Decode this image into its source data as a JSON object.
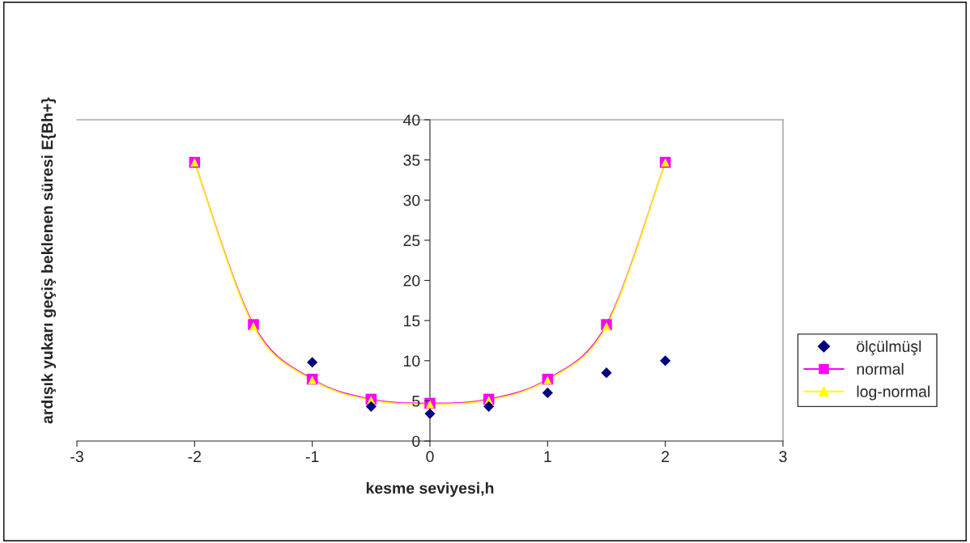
{
  "chart_data": {
    "type": "scatter",
    "xlabel": "kesme seviyesi,h",
    "ylabel": "ardışık yukarı geçiş beklenen süresi E{Bh+}",
    "xlim": [
      -3,
      3
    ],
    "xticks": [
      -3,
      -2,
      -1,
      0,
      1,
      2,
      3
    ],
    "ylim": [
      0,
      40
    ],
    "yticks": [
      0,
      5,
      10,
      15,
      20,
      25,
      30,
      35,
      40
    ],
    "grid": false,
    "legend": "right",
    "series": [
      {
        "name": "ölçülmüşl",
        "marker": "diamond",
        "color": "#000080",
        "x": [
          -1,
          -0.5,
          0,
          0.5,
          1,
          1.5,
          2
        ],
        "values": [
          9.8,
          4.3,
          3.4,
          4.3,
          6.0,
          8.5,
          10.0
        ]
      },
      {
        "name": "normal",
        "type": "line",
        "marker": "square",
        "color": "#ff00ff",
        "x": [
          -2,
          -1.5,
          -1,
          -0.5,
          0,
          0.5,
          1,
          1.5,
          2
        ],
        "values": [
          34.7,
          14.5,
          7.7,
          5.2,
          4.7,
          5.2,
          7.7,
          14.5,
          34.7
        ]
      },
      {
        "name": "log-normal",
        "type": "line",
        "marker": "triangle",
        "color": "#ffff00",
        "x": [
          -2,
          -1.5,
          -1,
          -0.5,
          0,
          0.5,
          1,
          1.5,
          2
        ],
        "values": [
          34.7,
          14.3,
          7.6,
          5.1,
          4.6,
          5.1,
          7.6,
          14.3,
          34.7
        ]
      }
    ]
  }
}
